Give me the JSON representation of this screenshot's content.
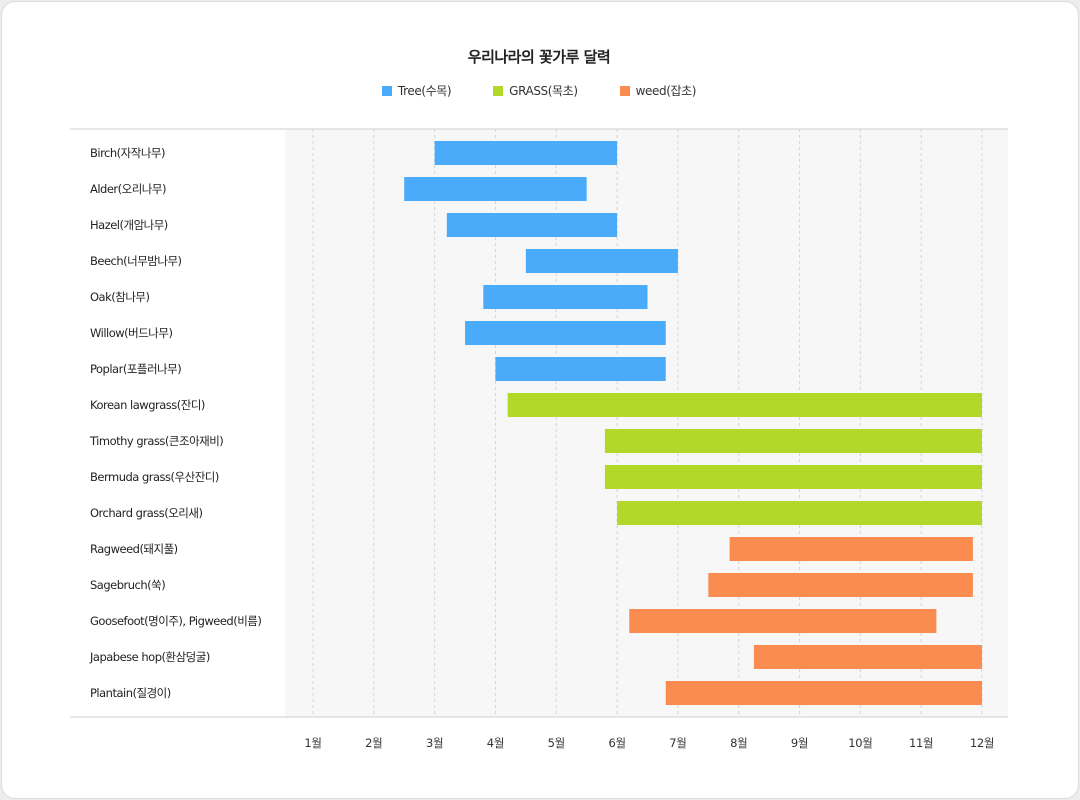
{
  "chart_data": {
    "type": "bar",
    "orientation": "horizontal-range",
    "title": "우리나라의 꽃가루 달력",
    "legend_position": "top",
    "series": [
      {
        "name": "Tree(수목)",
        "color": "#4aabfb"
      },
      {
        "name": "GRASS(목초)",
        "color": "#b2d92a"
      },
      {
        "name": "weed(잡초)",
        "color": "#f98c4e"
      }
    ],
    "x_ticks": [
      "1월",
      "2월",
      "3월",
      "4월",
      "5월",
      "6월",
      "7월",
      "8월",
      "9월",
      "10월",
      "11월",
      "12월"
    ],
    "x_range": [
      1,
      12
    ],
    "grid": true,
    "categories": [
      {
        "label": "Birch(자작나무)",
        "series": 0,
        "start": 3.0,
        "end": 6.0
      },
      {
        "label": "Alder(오리나무)",
        "series": 0,
        "start": 2.5,
        "end": 5.5
      },
      {
        "label": "Hazel(개암나무)",
        "series": 0,
        "start": 3.2,
        "end": 6.0
      },
      {
        "label": "Beech(너무밤나무)",
        "series": 0,
        "start": 4.5,
        "end": 7.0
      },
      {
        "label": "Oak(참나무)",
        "series": 0,
        "start": 3.8,
        "end": 6.5
      },
      {
        "label": "Willow(버드나무)",
        "series": 0,
        "start": 3.5,
        "end": 6.8
      },
      {
        "label": "Poplar(포플러나무)",
        "series": 0,
        "start": 4.0,
        "end": 6.8
      },
      {
        "label": "Korean lawgrass(잔디)",
        "series": 1,
        "start": 4.2,
        "end": 12.0
      },
      {
        "label": "Timothy grass(큰조아재비)",
        "series": 1,
        "start": 5.8,
        "end": 12.0
      },
      {
        "label": "Bermuda grass(우산잔디)",
        "series": 1,
        "start": 5.8,
        "end": 12.0
      },
      {
        "label": "Orchard grass(오리새)",
        "series": 1,
        "start": 6.0,
        "end": 12.0
      },
      {
        "label": "Ragweed(돼지풀)",
        "series": 2,
        "start": 7.85,
        "end": 11.85
      },
      {
        "label": "Sagebruch(쑥)",
        "series": 2,
        "start": 7.5,
        "end": 11.85
      },
      {
        "label": "Goosefoot(명이주), Pigweed(비름)",
        "series": 2,
        "start": 6.2,
        "end": 11.25
      },
      {
        "label": "Japabese hop(환삼덩굴)",
        "series": 2,
        "start": 8.25,
        "end": 12.0
      },
      {
        "label": "Plantain(질경이)",
        "series": 2,
        "start": 6.8,
        "end": 12.0
      }
    ]
  }
}
